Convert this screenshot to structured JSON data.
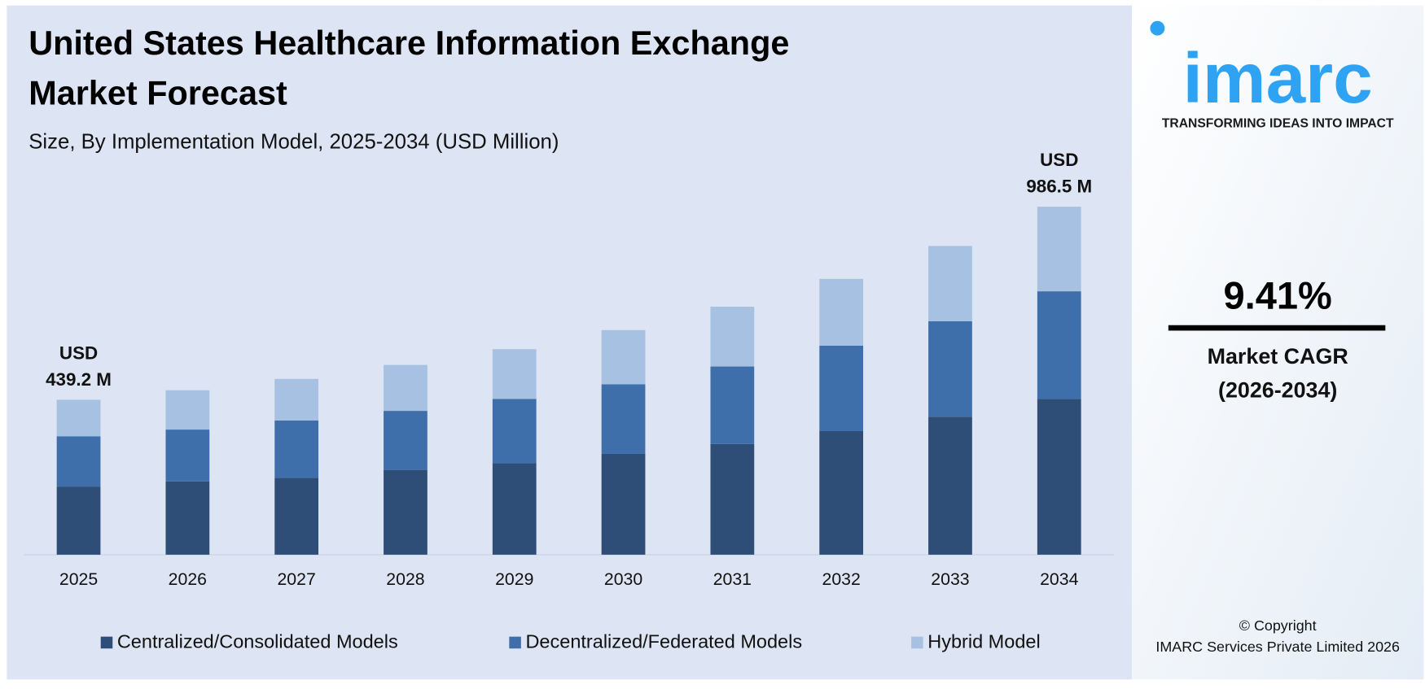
{
  "chart_data": {
    "type": "stacked-bar",
    "title": "United States Healthcare Information Exchange Market Forecast",
    "subtitle": "Size, By Implementation Model, 2025-2034 (USD Million)",
    "categories": [
      "2025",
      "2026",
      "2027",
      "2028",
      "2029",
      "2030",
      "2031",
      "2032",
      "2033",
      "2034"
    ],
    "series": [
      {
        "name": "Centralized/Consolidated Models",
        "color": "#2e4d77",
        "values": [
          193.2,
          207.9,
          217.5,
          240.4,
          259.9,
          285.8,
          313.8,
          350.3,
          391.2,
          441.9
        ]
      },
      {
        "name": "Decentralized/Federated Models",
        "color": "#3f6faa",
        "values": [
          142.6,
          146.8,
          163.1,
          167.3,
          181.8,
          197.4,
          219.7,
          242.2,
          270.4,
          304.8
        ]
      },
      {
        "name": "Hybrid Model",
        "color": "#a6c1e1",
        "values": [
          103.4,
          111.4,
          117.8,
          130.2,
          141.0,
          153.4,
          169.5,
          189.4,
          213.6,
          239.8
        ]
      }
    ],
    "annotations": [
      {
        "x": "2025",
        "value": 439.2,
        "lines": [
          "USD",
          "439.2 M"
        ]
      },
      {
        "x": "2034",
        "value": 986.5,
        "lines": [
          "USD",
          "986.5 M"
        ]
      }
    ],
    "ylim": [
      0,
      1100
    ],
    "grid": false
  },
  "sidebar": {
    "logo": "imarc",
    "tagline": "TRANSFORMING IDEAS INTO IMPACT",
    "cagr": "9.41%",
    "cagr_label": [
      "Market CAGR",
      "(2026-2034)"
    ],
    "copyright": [
      "© Copyright",
      "IMARC Services Private Limited 2026"
    ]
  }
}
